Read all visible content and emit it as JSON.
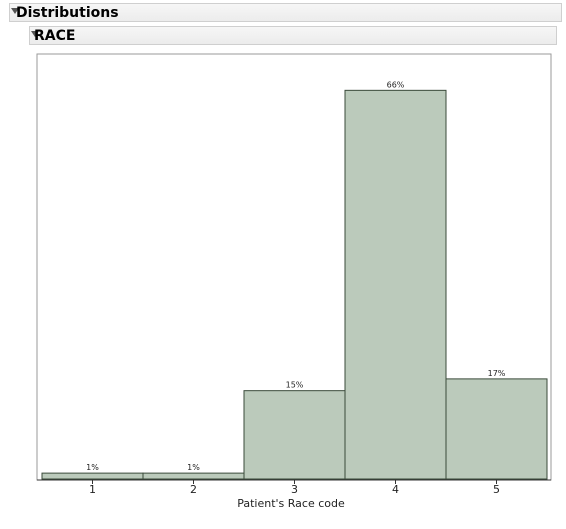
{
  "header": {
    "title": "Distributions"
  },
  "section": {
    "title": "RACE"
  },
  "chart_data": {
    "type": "bar",
    "categories": [
      "1",
      "2",
      "3",
      "4",
      "5"
    ],
    "values": [
      1,
      1,
      15,
      66,
      17
    ],
    "value_labels": [
      "1%",
      "1%",
      "15%",
      "66%",
      "17%"
    ],
    "xlabel": "Patient's Race code",
    "ylabel": "",
    "ylim": [
      0,
      72
    ],
    "grid": false,
    "bar_color": "#bbcabb",
    "bar_edge_color": "#3a4a3a"
  }
}
